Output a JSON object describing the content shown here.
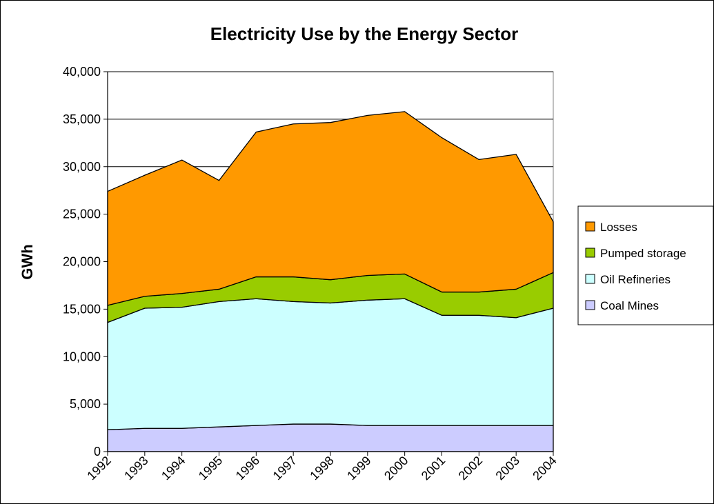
{
  "chart_data": {
    "type": "area",
    "stacked": true,
    "title": "Electricity Use by the Energy Sector",
    "xlabel": "",
    "ylabel": "GWh",
    "ylim": [
      0,
      40000
    ],
    "y_ticks": [
      0,
      5000,
      10000,
      15000,
      20000,
      25000,
      30000,
      35000,
      40000
    ],
    "y_tick_labels": [
      "0",
      "5,000",
      "10,000",
      "15,000",
      "20,000",
      "25,000",
      "30,000",
      "35,000",
      "40,000"
    ],
    "x": [
      "1992",
      "1993",
      "1994",
      "1995",
      "1996",
      "1997",
      "1998",
      "1999",
      "2000",
      "2001",
      "2002",
      "2003",
      "2004"
    ],
    "grid": true,
    "legend_position": "right",
    "series": [
      {
        "name": "Coal Mines",
        "color": "#ccccff",
        "values": [
          2300,
          2450,
          2450,
          2600,
          2750,
          2900,
          2900,
          2750,
          2750,
          2750,
          2750,
          2750,
          2750
        ]
      },
      {
        "name": "Oil Refineries",
        "color": "#ccffff",
        "values": [
          11300,
          12650,
          12750,
          13200,
          13350,
          12900,
          12750,
          13200,
          13350,
          11600,
          11600,
          11350,
          12350
        ]
      },
      {
        "name": "Pumped storage",
        "color": "#99cc00",
        "values": [
          1800,
          1250,
          1450,
          1300,
          2300,
          2600,
          2450,
          2600,
          2600,
          2450,
          2450,
          3000,
          3750
        ]
      },
      {
        "name": "Losses",
        "color": "#ff9900",
        "values": [
          12000,
          12750,
          14050,
          11450,
          15250,
          16100,
          16550,
          16850,
          17100,
          16250,
          13950,
          14200,
          5350
        ]
      }
    ]
  }
}
